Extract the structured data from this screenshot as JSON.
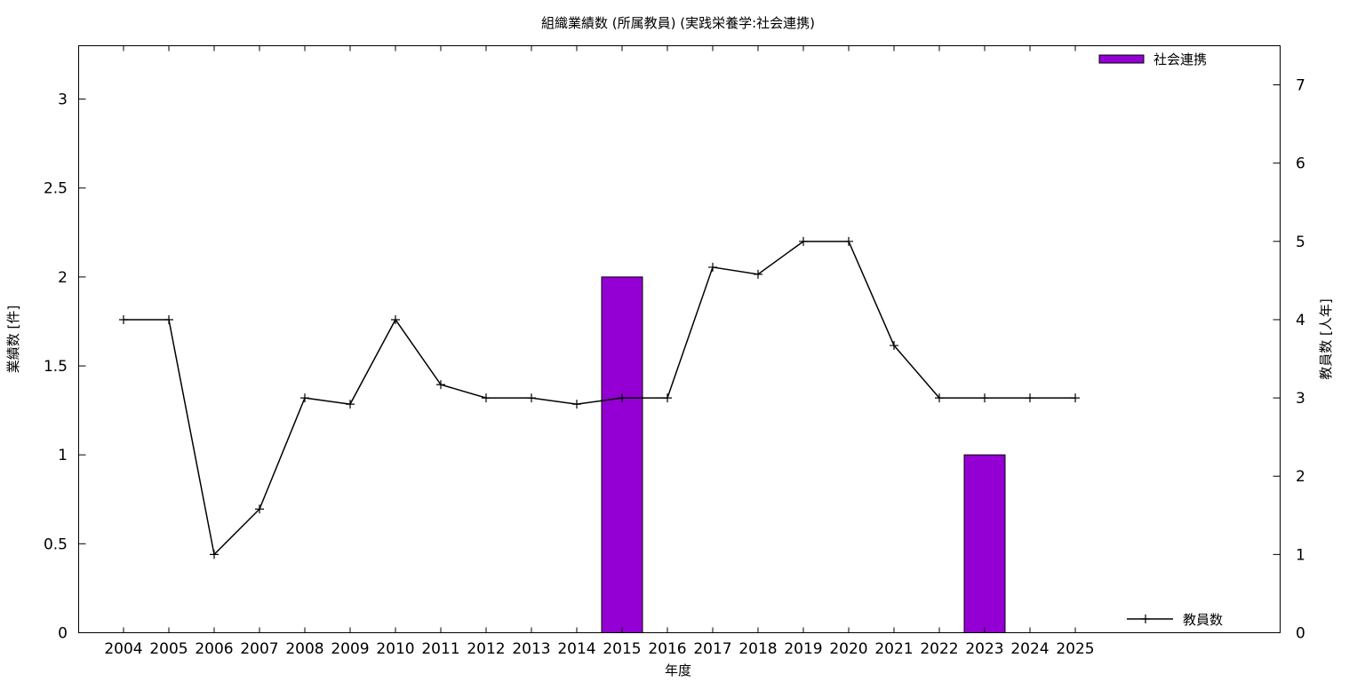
{
  "chart_data": {
    "type": "bar",
    "title": "組織業績数 (所属教員) (実践栄養学:社会連携)",
    "xlabel": "年度",
    "ylabel_left": "業績数 [件]",
    "ylabel_right": "教員数 [人年]",
    "categories": [
      "2004",
      "2005",
      "2006",
      "2007",
      "2008",
      "2009",
      "2010",
      "2011",
      "2012",
      "2013",
      "2014",
      "2015",
      "2016",
      "2017",
      "2018",
      "2019",
      "2020",
      "2021",
      "2022",
      "2023",
      "2024",
      "2025"
    ],
    "y_left_range": [
      0,
      3.3
    ],
    "y_left_ticks": [
      "0",
      "0.5",
      "1",
      "1.5",
      "2",
      "2.5",
      "3"
    ],
    "y_right_range": [
      0,
      7.5
    ],
    "y_right_ticks": [
      "0",
      "1",
      "2",
      "3",
      "4",
      "5",
      "6",
      "7"
    ],
    "series": [
      {
        "name": "社会連携",
        "type": "bar",
        "axis": "left",
        "color": "#9400d3",
        "values": [
          0,
          0,
          0,
          0,
          0,
          0,
          0,
          0,
          0,
          0,
          0,
          2,
          0,
          0,
          0,
          0,
          0,
          0,
          0,
          1,
          0,
          0
        ]
      },
      {
        "name": "教員数",
        "type": "line",
        "axis": "right",
        "color": "#000000",
        "values": [
          4,
          4,
          1,
          1.58,
          3,
          2.92,
          4,
          3.17,
          3,
          3,
          2.92,
          3,
          3,
          4.67,
          4.58,
          5,
          5,
          3.67,
          3,
          3,
          3,
          3
        ]
      }
    ],
    "legend": [
      "top-right",
      "bottom-right"
    ],
    "grid": false
  }
}
